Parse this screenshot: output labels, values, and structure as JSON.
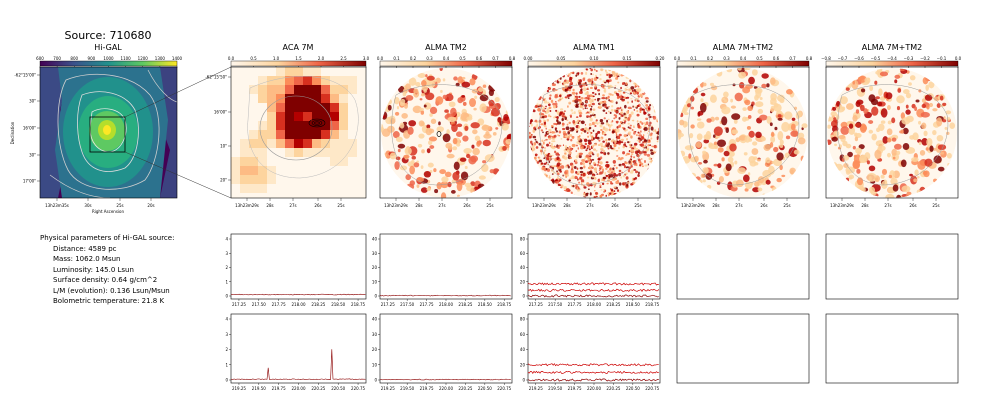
{
  "source_title": "Source: 710680",
  "params": {
    "heading": "Physical parameters of Hi-GAL source:",
    "distance": "Distance: 4589 pc",
    "mass": "Mass: 1062.0 Msun",
    "luminosity": "Luminosity: 145.0 Lsun",
    "surface_density": "Surface density: 0.64 g/cm^2",
    "lm": "L/M (evolution): 0.136 Lsun/Msun",
    "tbol": "Bolometric temperature: 21.8 K"
  },
  "chart_data": [
    {
      "type": "heatmap",
      "title": "Hi-GAL",
      "colormap": "viridis",
      "colorbar_ticks": [
        "600",
        "700",
        "800",
        "900",
        "1000",
        "1100",
        "1200",
        "1300",
        "1400"
      ],
      "y_ticks": [
        "-62°15'00\"",
        "30\"",
        "16'00\"",
        "30\"",
        "17'00\""
      ],
      "x_ticks": [
        "13h23m35s",
        "30s",
        "25s",
        "20s"
      ],
      "xlabel": "Right Ascension",
      "ylabel": "Declination"
    },
    {
      "type": "heatmap",
      "title": "ACA 7M",
      "colormap": "OrRd",
      "colorbar_ticks": [
        "0.0",
        "0.5",
        "1.0",
        "1.5",
        "2.0",
        "2.5",
        "3.0"
      ],
      "y_ticks": [
        "-62°15'50\"",
        "16'00\"",
        "10\"",
        "20\""
      ],
      "x_ticks": [
        "13h23m29s",
        "28s",
        "27s",
        "26s",
        "25s"
      ]
    },
    {
      "type": "heatmap",
      "title": "ALMA TM2",
      "colormap": "OrRd",
      "colorbar_ticks": [
        "0.0",
        "0.1",
        "0.2",
        "0.3",
        "0.4",
        "0.5",
        "0.6",
        "0.7",
        "0.8"
      ],
      "x_ticks": [
        "13h23m29s",
        "28s",
        "27s",
        "26s",
        "25s"
      ]
    },
    {
      "type": "heatmap",
      "title": "ALMA TM1",
      "colormap": "OrRd",
      "colorbar_ticks": [
        "0.00",
        "0.05",
        "0.10",
        "0.15",
        "0.20"
      ],
      "x_ticks": [
        "13h23m29s",
        "28s",
        "27s",
        "26s",
        "25s"
      ]
    },
    {
      "type": "heatmap",
      "title": "ALMA 7M+TM2",
      "colormap": "OrRd",
      "colorbar_ticks": [
        "0.0",
        "0.1",
        "0.2",
        "0.3",
        "0.4",
        "0.5",
        "0.6",
        "0.7",
        "0.8"
      ],
      "x_ticks": [
        "13h23m29s",
        "28s",
        "27s",
        "26s",
        "25s"
      ]
    },
    {
      "type": "heatmap",
      "title": "ALMA 7M+TM2",
      "colormap": "OrRd",
      "colorbar_ticks": [
        "−0.8",
        "−0.7",
        "−0.6",
        "−0.5",
        "−0.4",
        "−0.3",
        "−0.2",
        "−0.1",
        "0.0"
      ],
      "x_ticks": [
        "13h23m29s",
        "28s",
        "27s",
        "26s",
        "25s"
      ]
    },
    {
      "type": "line",
      "panel": "ACA 7M spectrum 1",
      "x_ticks": [
        "217.25",
        "217.50",
        "217.75",
        "218.00",
        "218.25",
        "218.50",
        "218.75"
      ],
      "y_ticks": [
        "0",
        "1",
        "2",
        "3",
        "4"
      ],
      "series_color": "#8b0000",
      "baseline": 0.1,
      "spikes": []
    },
    {
      "type": "line",
      "panel": "ALMA TM2 spectrum 1",
      "x_ticks": [
        "217.25",
        "217.50",
        "217.75",
        "218.00",
        "218.25",
        "218.50",
        "218.75"
      ],
      "y_ticks": [
        "0",
        "10",
        "20",
        "30",
        "40"
      ],
      "series_color": "#8b0000",
      "baseline": 0.3,
      "spikes": []
    },
    {
      "type": "line",
      "panel": "ALMA TM1 spectrum 1",
      "x_ticks": [
        "217.25",
        "217.50",
        "217.75",
        "218.00",
        "218.25",
        "218.50",
        "218.75"
      ],
      "y_ticks": [
        "0",
        "20",
        "40",
        "60",
        "80"
      ],
      "series_color": "#cc0000",
      "bands": [
        17,
        8,
        0
      ]
    },
    {
      "type": "line",
      "panel": "ACA 7M spectrum 2",
      "x_ticks": [
        "219.25",
        "219.50",
        "219.75",
        "220.00",
        "220.25",
        "220.50",
        "220.75"
      ],
      "y_ticks": [
        "0",
        "1",
        "2",
        "3",
        "4"
      ],
      "series_color": "#8b0000",
      "baseline": 0.05,
      "spikes": [
        {
          "x": 219.62,
          "y": 0.8
        },
        {
          "x": 220.42,
          "y": 2.0
        }
      ]
    },
    {
      "type": "line",
      "panel": "ALMA TM2 spectrum 2",
      "x_ticks": [
        "219.25",
        "219.50",
        "219.75",
        "220.00",
        "220.25",
        "220.50",
        "220.75"
      ],
      "y_ticks": [
        "0",
        "10",
        "20",
        "30",
        "40"
      ],
      "series_color": "#8b0000",
      "baseline": 0.3,
      "spikes": []
    },
    {
      "type": "line",
      "panel": "ALMA TM1 spectrum 2",
      "x_ticks": [
        "219.25",
        "219.50",
        "219.75",
        "220.00",
        "220.25",
        "220.50",
        "220.75"
      ],
      "y_ticks": [
        "0",
        "20",
        "40",
        "60",
        "80"
      ],
      "series_color": "#cc0000",
      "bands": [
        20,
        10,
        0
      ]
    }
  ]
}
